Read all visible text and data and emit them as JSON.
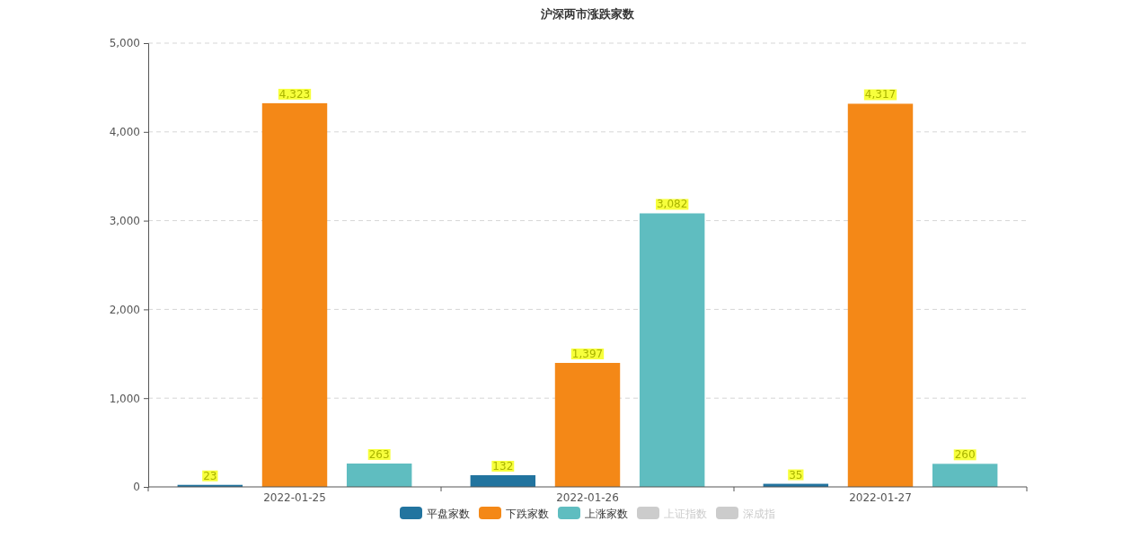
{
  "chart_data": {
    "type": "bar",
    "title": "沪深两市涨跌家数",
    "categories": [
      "2022-01-25",
      "2022-01-26",
      "2022-01-27"
    ],
    "series": [
      {
        "name": "平盘家数",
        "color": "#22749f",
        "values": [
          23,
          132,
          35
        ],
        "value_labels": [
          "23",
          "132",
          "35"
        ]
      },
      {
        "name": "下跌家数",
        "color": "#f48817",
        "values": [
          4323,
          1397,
          4317
        ],
        "value_labels": [
          "4,323",
          "1,397",
          "4,317"
        ]
      },
      {
        "name": "上涨家数",
        "color": "#5fbdc0",
        "values": [
          263,
          3082,
          260
        ],
        "value_labels": [
          "263",
          "3,082",
          "260"
        ]
      },
      {
        "name": "上证指数",
        "type": "line",
        "color": "#cccccc",
        "values": [
          null,
          null,
          null
        ]
      },
      {
        "name": "深成指",
        "type": "line",
        "color": "#cccccc",
        "values": [
          null,
          null,
          null
        ]
      }
    ],
    "ylim": [
      0,
      5000
    ],
    "yticks": [
      0,
      {
        "value": 1000,
        "label": "1,000"
      },
      {
        "value": 2000,
        "label": "2,000"
      },
      {
        "value": 3000,
        "label": "3,000"
      },
      {
        "value": 4000,
        "label": "4,000"
      },
      {
        "value": 5000,
        "label": "5,000"
      }
    ],
    "grid": "y",
    "legend": "bottom"
  }
}
